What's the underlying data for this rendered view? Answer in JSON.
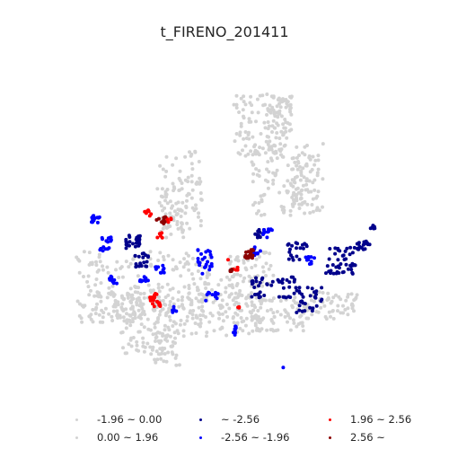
{
  "chart_data": {
    "type": "scatter",
    "title": "t_FIRENO_201411",
    "axes_visible": false,
    "grid": false,
    "legend_placement": "bottom",
    "series": [
      {
        "name": "-1.96 ~ 0.00",
        "color": "#d3d3d3",
        "clusters": [
          [
            120,
            320,
            35,
            40,
            110
          ],
          [
            165,
            360,
            30,
            35,
            90
          ],
          [
            185,
            390,
            15,
            20,
            40
          ],
          [
            200,
            210,
            25,
            45,
            80
          ],
          [
            230,
            350,
            60,
            25,
            120
          ],
          [
            290,
            140,
            30,
            35,
            90
          ],
          [
            320,
            200,
            40,
            40,
            110
          ],
          [
            300,
            350,
            40,
            20,
            90
          ],
          [
            370,
            340,
            30,
            15,
            60
          ],
          [
            280,
            300,
            25,
            20,
            60
          ],
          [
            200,
            310,
            35,
            30,
            70
          ]
        ]
      },
      {
        "name": "0.00 ~ 1.96",
        "color": "#d3d3d3",
        "clusters": [
          [
            310,
            130,
            15,
            25,
            60
          ],
          [
            340,
            200,
            15,
            30,
            60
          ],
          [
            240,
            330,
            30,
            25,
            60
          ],
          [
            140,
            340,
            20,
            15,
            40
          ],
          [
            190,
            240,
            15,
            25,
            40
          ]
        ]
      },
      {
        "name": "~ -2.56",
        "color": "#00008b",
        "clusters": [
          [
            148,
            270,
            8,
            8,
            25
          ],
          [
            158,
            290,
            8,
            8,
            20
          ],
          [
            305,
            320,
            25,
            12,
            45
          ],
          [
            345,
            335,
            15,
            15,
            30
          ],
          [
            380,
            290,
            18,
            15,
            45
          ],
          [
            405,
            272,
            8,
            6,
            20
          ],
          [
            330,
            280,
            12,
            10,
            20
          ],
          [
            415,
            256,
            3,
            5,
            6
          ],
          [
            290,
            260,
            6,
            5,
            10
          ]
        ]
      },
      {
        "name": "-2.56 ~ -1.96",
        "color": "#0000ff",
        "clusters": [
          [
            105,
            243,
            6,
            5,
            14
          ],
          [
            118,
            272,
            7,
            8,
            18
          ],
          [
            125,
            310,
            6,
            6,
            12
          ],
          [
            178,
            300,
            6,
            5,
            10
          ],
          [
            160,
            310,
            5,
            5,
            10
          ],
          [
            228,
            290,
            8,
            15,
            24
          ],
          [
            236,
            330,
            8,
            5,
            10
          ],
          [
            195,
            345,
            4,
            4,
            6
          ],
          [
            285,
            280,
            6,
            5,
            10
          ],
          [
            300,
            260,
            7,
            5,
            12
          ],
          [
            345,
            290,
            6,
            5,
            10
          ],
          [
            265,
            368,
            6,
            5,
            8
          ],
          [
            315,
            409,
            1,
            1,
            1
          ]
        ]
      },
      {
        "name": "1.96 ~ 2.56",
        "color": "#ff0000",
        "clusters": [
          [
            173,
            335,
            6,
            9,
            20
          ],
          [
            165,
            238,
            4,
            4,
            8
          ],
          [
            188,
            245,
            3,
            3,
            6
          ],
          [
            265,
            342,
            2,
            2,
            3
          ],
          [
            255,
            290,
            1,
            1,
            1
          ],
          [
            262,
            300,
            3,
            3,
            4
          ],
          [
            178,
            262,
            3,
            3,
            5
          ]
        ]
      },
      {
        "name": "2.56 ~",
        "color": "#8b0000",
        "clusters": [
          [
            278,
            283,
            5,
            5,
            18
          ],
          [
            180,
            245,
            6,
            4,
            8
          ],
          [
            260,
            302,
            4,
            3,
            5
          ]
        ]
      }
    ]
  }
}
